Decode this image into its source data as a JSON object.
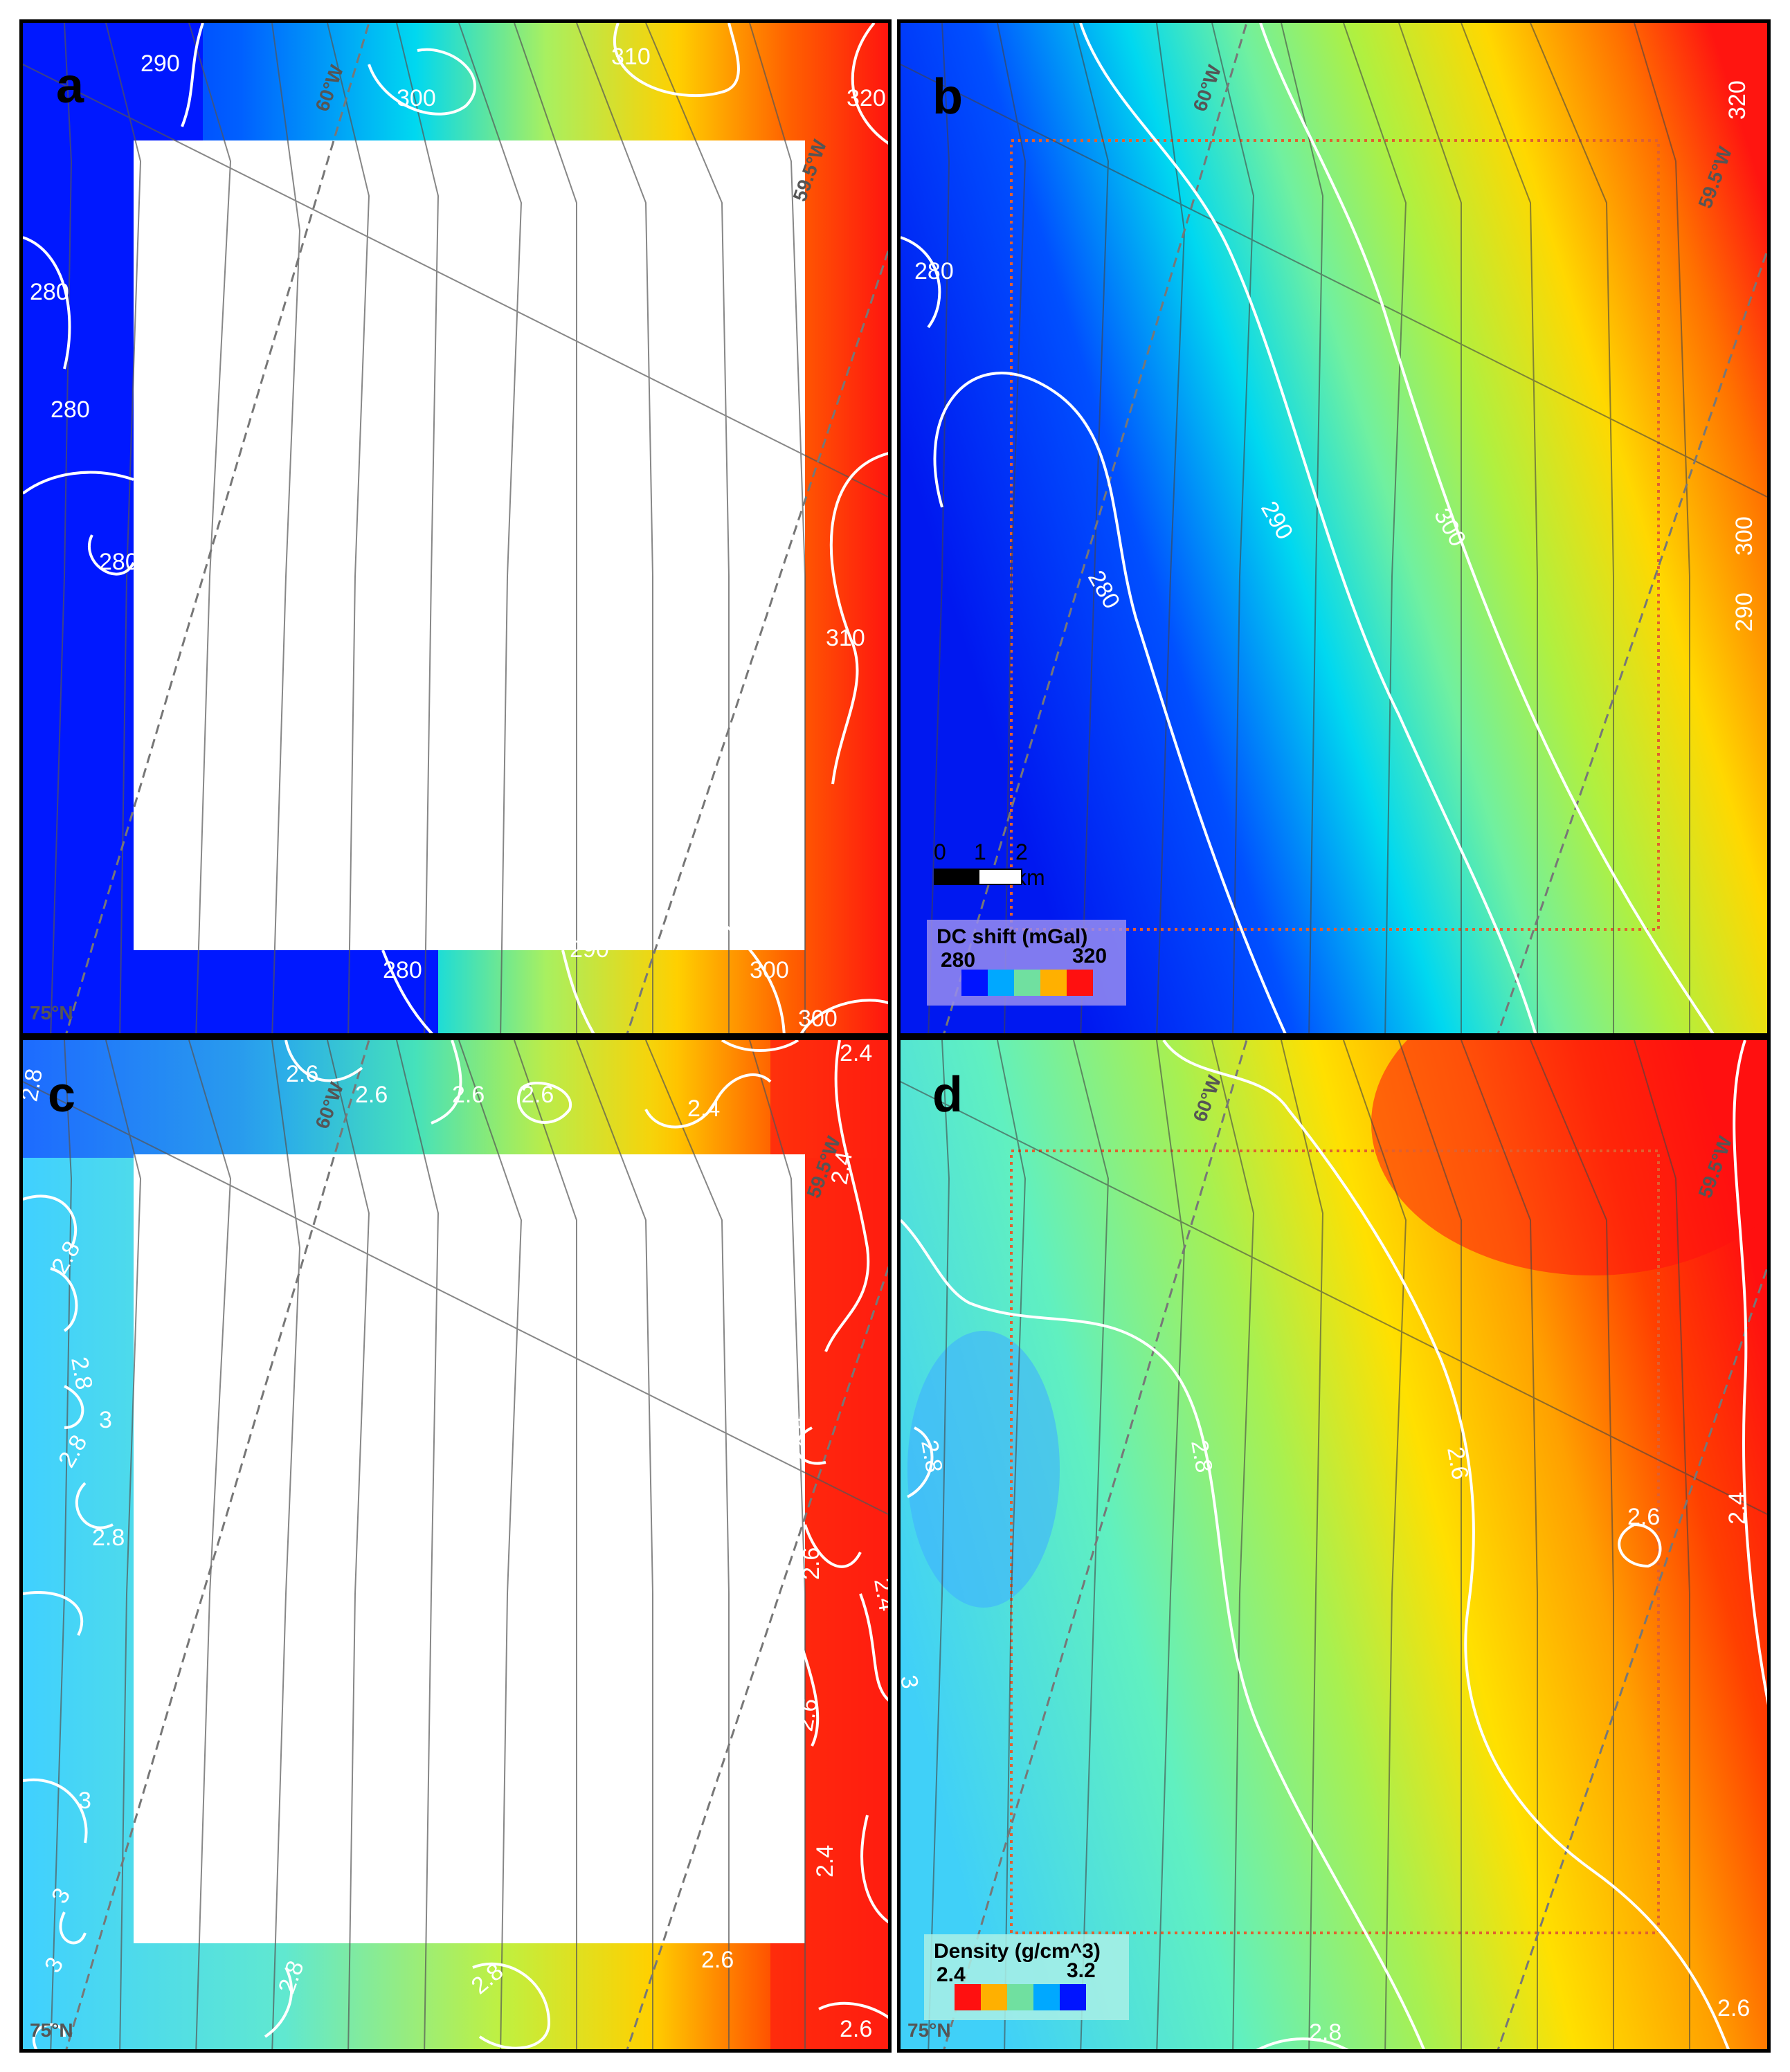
{
  "panels": {
    "a": {
      "label": "a"
    },
    "b": {
      "label": "b"
    },
    "c": {
      "label": "c"
    },
    "d": {
      "label": "d"
    }
  },
  "grid_labels": {
    "lon_60": "60°W",
    "lon_59_5": "59.5°W",
    "lat_75": "75°N"
  },
  "contours_a": [
    "290",
    "310",
    "300",
    "320",
    "280",
    "280",
    "280",
    "310",
    "280",
    "290",
    "300",
    "300"
  ],
  "contours_b": [
    "280",
    "290",
    "300",
    "280",
    "320",
    "300",
    "290"
  ],
  "contours_c": [
    "2.8",
    "2.6",
    "2.6",
    "2.6",
    "2.6",
    "2.4",
    "2.4",
    "2.4",
    "2.8",
    "2.8",
    "3",
    "2.8",
    "2.8",
    "2.4",
    "2.6",
    "2.4",
    "3",
    "2.6",
    "3",
    "2.4",
    "3",
    "2.8",
    "2.8",
    "2.6",
    "2.6"
  ],
  "contours_d": [
    "2.8",
    "2.8",
    "2.6",
    "2.6",
    "2.4",
    "3",
    "2.8",
    "2.6"
  ],
  "scale_bar": {
    "labels": [
      "0",
      "1",
      "2 km"
    ]
  },
  "legend_dc": {
    "title": "DC shift (mGal)",
    "min": "280",
    "max": "320",
    "colors": [
      "#0014ff",
      "#00a8ff",
      "#70e0a0",
      "#ffb000",
      "#ff1010"
    ]
  },
  "legend_density": {
    "title": "Density (g/cm^3)",
    "min": "2.4",
    "max": "3.2",
    "colors": [
      "#ff1010",
      "#ffb000",
      "#70e0a0",
      "#00a8ff",
      "#0014ff"
    ]
  }
}
